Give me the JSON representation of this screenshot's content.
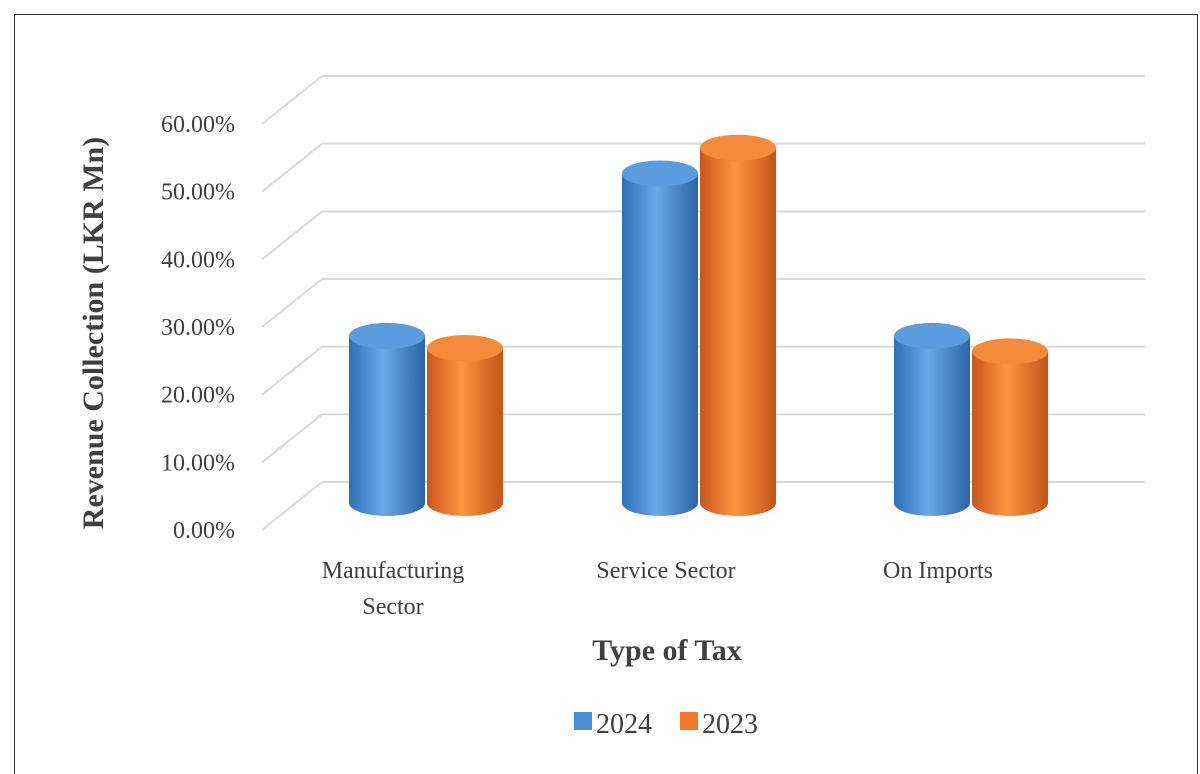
{
  "chart_data": {
    "type": "bar",
    "title": "",
    "xlabel": "Type of Tax",
    "ylabel": "Revenue Collection (LKR Mn)",
    "categories": [
      [
        "Manufacturing",
        "Sector"
      ],
      [
        "Service Sector"
      ],
      [
        "On Imports"
      ]
    ],
    "series": [
      {
        "name": "2024",
        "values": [
          24.7,
          48.7,
          24.7
        ],
        "color": "#4a8fd6"
      },
      {
        "name": "2023",
        "values": [
          22.9,
          52.5,
          22.4
        ],
        "color": "#f07a26"
      }
    ],
    "ylim": [
      0,
      60
    ],
    "yticks": [
      0,
      10,
      20,
      30,
      40,
      50,
      60
    ],
    "ytick_labels": [
      "0.00%",
      "10.00%",
      "20.00%",
      "30.00%",
      "40.00%",
      "50.00%",
      "60.00%"
    ],
    "legend_position": "bottom",
    "grid": true,
    "style": "3d-cylinder"
  }
}
